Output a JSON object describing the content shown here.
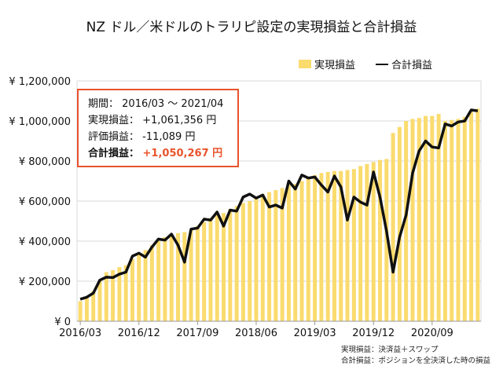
{
  "chart_data": {
    "type": "bar+line",
    "title": "NZ ドル／米ドルのトラリピ設定の実現損益と合計損益",
    "ylim": [
      0,
      1200000
    ],
    "y_ticks": [
      0,
      200000,
      400000,
      600000,
      800000,
      1000000,
      1200000
    ],
    "y_tick_labels": [
      "¥ 0",
      "¥ 200,000",
      "¥ 400,000",
      "¥ 600,000",
      "¥ 800,000",
      "¥ 1,000,000",
      "¥ 1,200,000"
    ],
    "x_tick_labels": [
      "2016/03",
      "2016/12",
      "2017/09",
      "2018/06",
      "2019/03",
      "2019/12",
      "2020/09"
    ],
    "x_tick_every_months": 9,
    "start_month": "2016/03",
    "end_month": "2021/04",
    "grid": true,
    "legend_position": "top-right",
    "colors": {
      "bar": "#fadb6e",
      "line": "#111111",
      "grid": "#d9d9d9"
    },
    "series": [
      {
        "name": "実現損益",
        "kind": "bar",
        "values": [
          100000,
          120000,
          150000,
          200000,
          245000,
          255000,
          270000,
          280000,
          310000,
          335000,
          355000,
          380000,
          400000,
          420000,
          435000,
          440000,
          445000,
          455000,
          475000,
          495000,
          515000,
          530000,
          540000,
          560000,
          575000,
          590000,
          600000,
          615000,
          635000,
          645000,
          655000,
          665000,
          680000,
          685000,
          700000,
          720000,
          730000,
          740000,
          745000,
          750000,
          750000,
          755000,
          760000,
          775000,
          785000,
          795000,
          805000,
          810000,
          940000,
          970000,
          1000000,
          1010000,
          1015000,
          1025000,
          1025000,
          1035000,
          1000000,
          1005000,
          1010000,
          1020000,
          1055000,
          1061356
        ]
      },
      {
        "name": "合計損益",
        "kind": "line",
        "values": [
          110000,
          120000,
          140000,
          205000,
          220000,
          218000,
          235000,
          245000,
          325000,
          340000,
          320000,
          370000,
          410000,
          405000,
          435000,
          380000,
          295000,
          460000,
          465000,
          510000,
          505000,
          545000,
          475000,
          555000,
          550000,
          620000,
          635000,
          615000,
          630000,
          570000,
          580000,
          565000,
          700000,
          660000,
          730000,
          715000,
          720000,
          680000,
          645000,
          725000,
          670000,
          505000,
          620000,
          595000,
          580000,
          745000,
          620000,
          450000,
          245000,
          420000,
          530000,
          740000,
          850000,
          900000,
          870000,
          865000,
          985000,
          975000,
          995000,
          1000000,
          1055000,
          1050267
        ]
      }
    ]
  },
  "annotation": {
    "period_label": "期間：",
    "period_value": " 2016/03 ～ 2021/04",
    "realized_label": "実現損益：",
    "realized_value": " +1,061,356 円",
    "unrealized_label": "評価損益：",
    "unrealized_value": " -11,089 円",
    "total_label": "合計損益：",
    "total_value": " +1,050,267 円",
    "accent_color": "#e8532b"
  },
  "notes": [
    "実現損益：決済益＋スワップ",
    "合計損益：ポジションを全決済した時の損益"
  ]
}
